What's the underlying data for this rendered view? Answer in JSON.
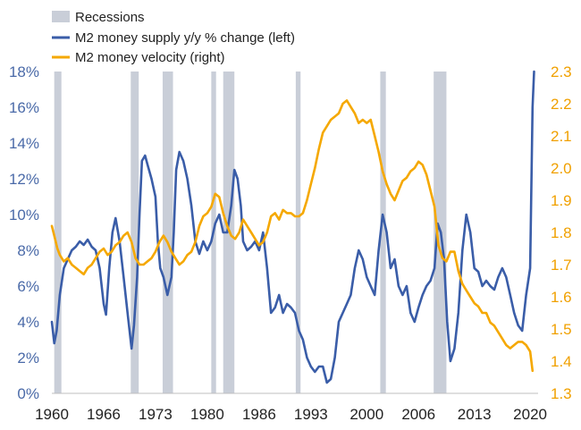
{
  "chart_data": {
    "type": "line",
    "x_range": [
      1960,
      2021
    ],
    "y_left": {
      "min": 0,
      "max": 18,
      "step": 2,
      "suffix": "%",
      "ticks": [
        "0%",
        "2%",
        "4%",
        "6%",
        "8%",
        "10%",
        "12%",
        "14%",
        "16%",
        "18%"
      ]
    },
    "y_right": {
      "min": 1.3,
      "max": 2.3,
      "ticks": [
        "1.3",
        "1.4",
        "1.5",
        "1.6",
        "1.7",
        "1.8",
        "1.9",
        "2.0",
        "2.1",
        "2.2",
        "2.3"
      ]
    },
    "x_ticks": [
      {
        "year": 1960,
        "label": "1960"
      },
      {
        "year": 1966.5,
        "label": "1966"
      },
      {
        "year": 1973,
        "label": "1973"
      },
      {
        "year": 1979.5,
        "label": "1980"
      },
      {
        "year": 1986,
        "label": "1986"
      },
      {
        "year": 1992.5,
        "label": "1993"
      },
      {
        "year": 1999.5,
        "label": "2000"
      },
      {
        "year": 2006,
        "label": "2006"
      },
      {
        "year": 2013,
        "label": "2013"
      },
      {
        "year": 2020,
        "label": "2020"
      }
    ],
    "legend": {
      "recessions": "Recessions",
      "m2_supply": "M2 money supply y/y % change (left)",
      "m2_velocity": "M2 money velocity (right)"
    },
    "colors": {
      "m2_supply": "#3a5da8",
      "m2_velocity": "#f5a800",
      "recessions": "#c9ced8"
    },
    "recessions": [
      [
        1960.3,
        1961.2
      ],
      [
        1969.9,
        1970.9
      ],
      [
        1973.9,
        1975.2
      ],
      [
        1980.0,
        1980.6
      ],
      [
        1981.5,
        1982.9
      ],
      [
        1990.6,
        1991.2
      ],
      [
        2001.2,
        2001.9
      ],
      [
        2007.9,
        2009.5
      ]
    ],
    "series": [
      {
        "name": "M2 money supply y/y % change (left)",
        "axis": "left",
        "points": [
          [
            1960.0,
            4.0
          ],
          [
            1960.3,
            2.8
          ],
          [
            1960.6,
            3.5
          ],
          [
            1961.0,
            5.5
          ],
          [
            1961.5,
            7.0
          ],
          [
            1962.0,
            7.5
          ],
          [
            1962.5,
            8.0
          ],
          [
            1963.0,
            8.2
          ],
          [
            1963.5,
            8.5
          ],
          [
            1964.0,
            8.3
          ],
          [
            1964.5,
            8.6
          ],
          [
            1965.0,
            8.2
          ],
          [
            1965.5,
            8.0
          ],
          [
            1966.0,
            7.0
          ],
          [
            1966.5,
            5.0
          ],
          [
            1966.8,
            4.4
          ],
          [
            1967.2,
            7.0
          ],
          [
            1967.6,
            9.0
          ],
          [
            1968.0,
            9.8
          ],
          [
            1968.5,
            8.5
          ],
          [
            1969.0,
            6.5
          ],
          [
            1969.5,
            4.5
          ],
          [
            1970.0,
            2.5
          ],
          [
            1970.3,
            3.8
          ],
          [
            1970.7,
            6.5
          ],
          [
            1971.0,
            10.0
          ],
          [
            1971.3,
            13.0
          ],
          [
            1971.7,
            13.3
          ],
          [
            1972.0,
            12.8
          ],
          [
            1972.5,
            12.0
          ],
          [
            1973.0,
            11.0
          ],
          [
            1973.3,
            8.5
          ],
          [
            1973.6,
            7.0
          ],
          [
            1974.0,
            6.5
          ],
          [
            1974.5,
            5.5
          ],
          [
            1975.0,
            6.5
          ],
          [
            1975.3,
            9.0
          ],
          [
            1975.6,
            12.5
          ],
          [
            1976.0,
            13.5
          ],
          [
            1976.5,
            13.0
          ],
          [
            1977.0,
            12.0
          ],
          [
            1977.5,
            10.5
          ],
          [
            1978.0,
            8.5
          ],
          [
            1978.5,
            7.8
          ],
          [
            1979.0,
            8.5
          ],
          [
            1979.5,
            8.0
          ],
          [
            1980.0,
            8.5
          ],
          [
            1980.5,
            9.5
          ],
          [
            1981.0,
            10.0
          ],
          [
            1981.5,
            9.0
          ],
          [
            1982.0,
            9.0
          ],
          [
            1982.5,
            10.5
          ],
          [
            1982.9,
            12.5
          ],
          [
            1983.3,
            12.0
          ],
          [
            1983.7,
            10.5
          ],
          [
            1984.0,
            8.5
          ],
          [
            1984.5,
            8.0
          ],
          [
            1985.0,
            8.2
          ],
          [
            1985.5,
            8.5
          ],
          [
            1986.0,
            8.0
          ],
          [
            1986.5,
            9.0
          ],
          [
            1987.0,
            7.0
          ],
          [
            1987.5,
            4.5
          ],
          [
            1988.0,
            4.8
          ],
          [
            1988.5,
            5.5
          ],
          [
            1989.0,
            4.5
          ],
          [
            1989.5,
            5.0
          ],
          [
            1990.0,
            4.8
          ],
          [
            1990.5,
            4.5
          ],
          [
            1991.0,
            3.5
          ],
          [
            1991.5,
            3.0
          ],
          [
            1992.0,
            2.0
          ],
          [
            1992.5,
            1.5
          ],
          [
            1993.0,
            1.2
          ],
          [
            1993.5,
            1.5
          ],
          [
            1994.0,
            1.5
          ],
          [
            1994.5,
            0.6
          ],
          [
            1995.0,
            0.8
          ],
          [
            1995.5,
            2.0
          ],
          [
            1996.0,
            4.0
          ],
          [
            1996.5,
            4.5
          ],
          [
            1997.0,
            5.0
          ],
          [
            1997.5,
            5.5
          ],
          [
            1998.0,
            7.0
          ],
          [
            1998.5,
            8.0
          ],
          [
            1999.0,
            7.5
          ],
          [
            1999.5,
            6.5
          ],
          [
            2000.0,
            6.0
          ],
          [
            2000.5,
            5.5
          ],
          [
            2001.0,
            8.0
          ],
          [
            2001.5,
            10.0
          ],
          [
            2002.0,
            9.0
          ],
          [
            2002.5,
            7.0
          ],
          [
            2003.0,
            7.5
          ],
          [
            2003.5,
            6.0
          ],
          [
            2004.0,
            5.5
          ],
          [
            2004.5,
            6.0
          ],
          [
            2005.0,
            4.5
          ],
          [
            2005.5,
            4.0
          ],
          [
            2006.0,
            4.8
          ],
          [
            2006.5,
            5.5
          ],
          [
            2007.0,
            6.0
          ],
          [
            2007.5,
            6.3
          ],
          [
            2008.0,
            7.0
          ],
          [
            2008.4,
            9.5
          ],
          [
            2008.8,
            9.0
          ],
          [
            2009.2,
            7.5
          ],
          [
            2009.6,
            4.0
          ],
          [
            2010.0,
            1.8
          ],
          [
            2010.5,
            2.5
          ],
          [
            2011.0,
            4.5
          ],
          [
            2011.5,
            8.0
          ],
          [
            2012.0,
            10.0
          ],
          [
            2012.5,
            9.0
          ],
          [
            2013.0,
            7.0
          ],
          [
            2013.5,
            6.8
          ],
          [
            2014.0,
            6.0
          ],
          [
            2014.5,
            6.3
          ],
          [
            2015.0,
            6.0
          ],
          [
            2015.5,
            5.8
          ],
          [
            2016.0,
            6.5
          ],
          [
            2016.5,
            7.0
          ],
          [
            2017.0,
            6.5
          ],
          [
            2017.5,
            5.5
          ],
          [
            2018.0,
            4.5
          ],
          [
            2018.5,
            3.8
          ],
          [
            2019.0,
            3.5
          ],
          [
            2019.5,
            5.5
          ],
          [
            2020.0,
            7.0
          ],
          [
            2020.3,
            16.0
          ],
          [
            2020.5,
            18.0
          ]
        ]
      },
      {
        "name": "M2 money velocity (right)",
        "axis": "right",
        "points": [
          [
            1960.0,
            1.82
          ],
          [
            1960.3,
            1.79
          ],
          [
            1960.7,
            1.75
          ],
          [
            1961.0,
            1.73
          ],
          [
            1961.5,
            1.71
          ],
          [
            1962.0,
            1.72
          ],
          [
            1962.5,
            1.7
          ],
          [
            1963.0,
            1.69
          ],
          [
            1963.5,
            1.68
          ],
          [
            1964.0,
            1.67
          ],
          [
            1964.5,
            1.69
          ],
          [
            1965.0,
            1.7
          ],
          [
            1965.5,
            1.72
          ],
          [
            1966.0,
            1.74
          ],
          [
            1966.5,
            1.75
          ],
          [
            1967.0,
            1.73
          ],
          [
            1967.5,
            1.74
          ],
          [
            1968.0,
            1.76
          ],
          [
            1968.5,
            1.77
          ],
          [
            1969.0,
            1.79
          ],
          [
            1969.5,
            1.8
          ],
          [
            1970.0,
            1.77
          ],
          [
            1970.5,
            1.72
          ],
          [
            1971.0,
            1.7
          ],
          [
            1971.5,
            1.7
          ],
          [
            1972.0,
            1.71
          ],
          [
            1972.5,
            1.72
          ],
          [
            1973.0,
            1.74
          ],
          [
            1973.5,
            1.77
          ],
          [
            1974.0,
            1.79
          ],
          [
            1974.5,
            1.77
          ],
          [
            1975.0,
            1.74
          ],
          [
            1975.5,
            1.72
          ],
          [
            1976.0,
            1.7
          ],
          [
            1976.5,
            1.71
          ],
          [
            1977.0,
            1.73
          ],
          [
            1977.5,
            1.74
          ],
          [
            1978.0,
            1.77
          ],
          [
            1978.5,
            1.82
          ],
          [
            1979.0,
            1.85
          ],
          [
            1979.5,
            1.86
          ],
          [
            1980.0,
            1.88
          ],
          [
            1980.5,
            1.92
          ],
          [
            1981.0,
            1.91
          ],
          [
            1981.5,
            1.86
          ],
          [
            1982.0,
            1.82
          ],
          [
            1982.5,
            1.79
          ],
          [
            1983.0,
            1.78
          ],
          [
            1983.5,
            1.8
          ],
          [
            1984.0,
            1.84
          ],
          [
            1984.5,
            1.82
          ],
          [
            1985.0,
            1.8
          ],
          [
            1985.5,
            1.78
          ],
          [
            1986.0,
            1.76
          ],
          [
            1986.5,
            1.77
          ],
          [
            1987.0,
            1.8
          ],
          [
            1987.5,
            1.85
          ],
          [
            1988.0,
            1.86
          ],
          [
            1988.5,
            1.84
          ],
          [
            1989.0,
            1.87
          ],
          [
            1989.5,
            1.86
          ],
          [
            1990.0,
            1.86
          ],
          [
            1990.5,
            1.85
          ],
          [
            1991.0,
            1.85
          ],
          [
            1991.5,
            1.86
          ],
          [
            1992.0,
            1.9
          ],
          [
            1992.5,
            1.95
          ],
          [
            1993.0,
            2.0
          ],
          [
            1993.5,
            2.06
          ],
          [
            1994.0,
            2.11
          ],
          [
            1994.5,
            2.13
          ],
          [
            1995.0,
            2.15
          ],
          [
            1995.5,
            2.16
          ],
          [
            1996.0,
            2.17
          ],
          [
            1996.5,
            2.2
          ],
          [
            1997.0,
            2.21
          ],
          [
            1997.5,
            2.19
          ],
          [
            1998.0,
            2.17
          ],
          [
            1998.5,
            2.14
          ],
          [
            1999.0,
            2.15
          ],
          [
            1999.5,
            2.14
          ],
          [
            2000.0,
            2.15
          ],
          [
            2000.5,
            2.1
          ],
          [
            2001.0,
            2.05
          ],
          [
            2001.5,
            1.99
          ],
          [
            2002.0,
            1.95
          ],
          [
            2002.5,
            1.92
          ],
          [
            2003.0,
            1.9
          ],
          [
            2003.5,
            1.93
          ],
          [
            2004.0,
            1.96
          ],
          [
            2004.5,
            1.97
          ],
          [
            2005.0,
            1.99
          ],
          [
            2005.5,
            2.0
          ],
          [
            2006.0,
            2.02
          ],
          [
            2006.5,
            2.01
          ],
          [
            2007.0,
            1.98
          ],
          [
            2007.5,
            1.93
          ],
          [
            2008.0,
            1.88
          ],
          [
            2008.5,
            1.76
          ],
          [
            2009.0,
            1.72
          ],
          [
            2009.5,
            1.71
          ],
          [
            2010.0,
            1.74
          ],
          [
            2010.5,
            1.74
          ],
          [
            2011.0,
            1.68
          ],
          [
            2011.5,
            1.64
          ],
          [
            2012.0,
            1.62
          ],
          [
            2012.5,
            1.6
          ],
          [
            2013.0,
            1.58
          ],
          [
            2013.5,
            1.57
          ],
          [
            2014.0,
            1.55
          ],
          [
            2014.5,
            1.55
          ],
          [
            2015.0,
            1.52
          ],
          [
            2015.5,
            1.51
          ],
          [
            2016.0,
            1.49
          ],
          [
            2016.5,
            1.47
          ],
          [
            2017.0,
            1.45
          ],
          [
            2017.5,
            1.44
          ],
          [
            2018.0,
            1.45
          ],
          [
            2018.5,
            1.46
          ],
          [
            2019.0,
            1.46
          ],
          [
            2019.5,
            1.45
          ],
          [
            2020.0,
            1.43
          ],
          [
            2020.3,
            1.37
          ]
        ]
      }
    ]
  }
}
